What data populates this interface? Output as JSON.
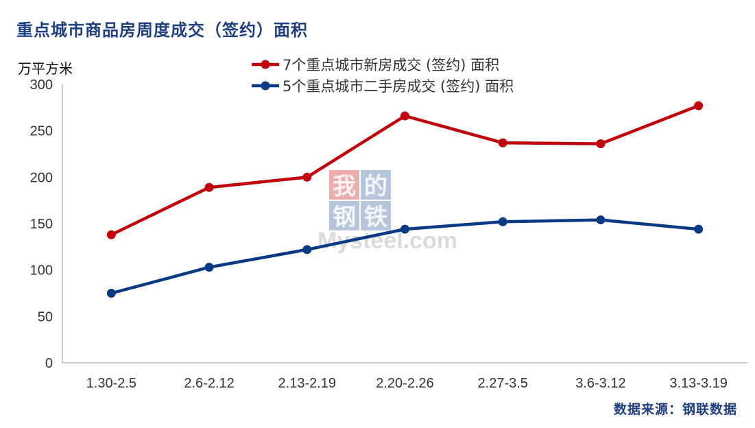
{
  "title": "重点城市商品房周度成交（签约）面积",
  "unit": "万平方米",
  "source": "数据来源：钢联数据",
  "watermark": {
    "chars": [
      "我",
      "的",
      "钢",
      "铁"
    ],
    "text": "Mysteel.com",
    "colors": [
      "#C00000",
      "#1F4E96"
    ]
  },
  "chart_data": {
    "type": "line",
    "title": "重点城市商品房周度成交（签约）面积",
    "xlabel": "",
    "ylabel": "万平方米",
    "categories": [
      "1.30-2.5",
      "2.6-2.12",
      "2.13-2.19",
      "2.20-2.26",
      "2.27-3.5",
      "3.6-3.12",
      "3.13-3.19"
    ],
    "ylim": [
      0,
      300
    ],
    "yticks": [
      0,
      50,
      100,
      150,
      200,
      250,
      300
    ],
    "grid": false,
    "legend_position": "top",
    "series": [
      {
        "name": "7个重点城市新房成交 (签约) 面积",
        "color": "#C0000A",
        "values": [
          138,
          189,
          200,
          266,
          237,
          236,
          277
        ]
      },
      {
        "name": "5个重点城市二手房成交 (签约) 面积",
        "color": "#0B3A85",
        "values": [
          75,
          103,
          122,
          144,
          152,
          154,
          144
        ]
      }
    ]
  }
}
